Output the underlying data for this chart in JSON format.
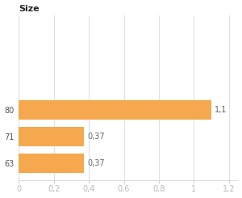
{
  "title": "Size",
  "categories": [
    "63",
    "71",
    "80"
  ],
  "values": [
    0.37,
    0.37,
    1.1
  ],
  "bar_color": "#f5a84e",
  "bar_labels": [
    "0,37",
    "0,37",
    "1,1"
  ],
  "xlim": [
    0,
    1.25
  ],
  "xticks": [
    0,
    0.2,
    0.4,
    0.6,
    0.8,
    1.0,
    1.2
  ],
  "xtick_labels": [
    "0",
    "0,2",
    "0,4",
    "0,6",
    "0,8",
    "1",
    "1,2"
  ],
  "background_color": "#ffffff",
  "grid_color": "#e0e0e0",
  "title_fontsize": 8,
  "label_fontsize": 7,
  "tick_fontsize": 7,
  "ytick_fontsize": 7
}
